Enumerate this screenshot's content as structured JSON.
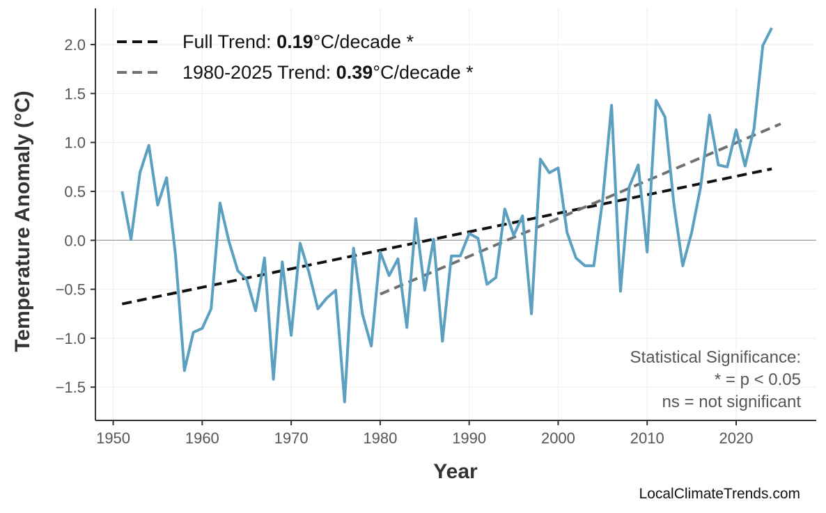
{
  "chart_data": {
    "type": "line",
    "title": "",
    "xlabel": "Year",
    "ylabel": "Temperature Anomaly (°C)",
    "xlim": [
      1948,
      2029
    ],
    "ylim": [
      -1.84,
      2.37
    ],
    "grid": true,
    "legend_position": "top-left",
    "x_ticks": [
      "1950",
      "1960",
      "1970",
      "1980",
      "1990",
      "2000",
      "2010",
      "2020"
    ],
    "y_ticks": [
      "−1.5",
      "−1.0",
      "−0.5",
      "0.0",
      "0.5",
      "1.0",
      "1.5",
      "2.0"
    ],
    "y_tick_values": [
      -1.5,
      -1.0,
      -0.5,
      0.0,
      0.5,
      1.0,
      1.5,
      2.0
    ],
    "series": [
      {
        "color": "#5ba0c0",
        "x": [
          1951,
          1952,
          1953,
          1954,
          1955,
          1956,
          1957,
          1958,
          1959,
          1960,
          1961,
          1962,
          1963,
          1964,
          1965,
          1966,
          1967,
          1968,
          1969,
          1970,
          1971,
          1972,
          1973,
          1974,
          1975,
          1976,
          1977,
          1978,
          1979,
          1980,
          1981,
          1982,
          1983,
          1984,
          1985,
          1986,
          1987,
          1988,
          1989,
          1990,
          1991,
          1992,
          1993,
          1994,
          1995,
          1996,
          1997,
          1998,
          1999,
          2000,
          2001,
          2002,
          2003,
          2004,
          2005,
          2006,
          2007,
          2008,
          2009,
          2010,
          2011,
          2012,
          2013,
          2014,
          2015,
          2016,
          2017,
          2018,
          2019,
          2020,
          2021,
          2022,
          2023,
          2024
        ],
        "y": [
          0.5,
          0.01,
          0.69,
          0.97,
          0.36,
          0.64,
          -0.15,
          -1.33,
          -0.94,
          -0.9,
          -0.7,
          0.38,
          -0.01,
          -0.31,
          -0.4,
          -0.72,
          -0.18,
          -1.42,
          -0.22,
          -0.97,
          -0.03,
          -0.33,
          -0.7,
          -0.59,
          -0.51,
          -1.65,
          -0.08,
          -0.75,
          -1.08,
          -0.12,
          -0.36,
          -0.19,
          -0.89,
          0.22,
          -0.51,
          0.01,
          -1.03,
          -0.16,
          -0.16,
          0.07,
          0.02,
          -0.45,
          -0.38,
          0.32,
          0.05,
          0.25,
          -0.75,
          0.83,
          0.69,
          0.74,
          0.08,
          -0.18,
          -0.26,
          -0.26,
          0.41,
          1.38,
          -0.52,
          0.55,
          0.77,
          -0.12,
          1.43,
          1.26,
          0.37,
          -0.26,
          0.08,
          0.54,
          1.28,
          0.77,
          0.75,
          1.13,
          0.76,
          1.14,
          1.99,
          2.17
        ]
      }
    ],
    "trends": [
      {
        "label_prefix": "Full Trend: ",
        "value": "0.19",
        "label_suffix": "°C/decade *",
        "color": "#111111",
        "x": [
          1951,
          2024
        ],
        "y": [
          -0.65,
          0.73
        ]
      },
      {
        "label_prefix": "1980-2025 Trend: ",
        "value": "0.39",
        "label_suffix": "°C/decade *",
        "color": "#707070",
        "x": [
          1980,
          2025
        ],
        "y": [
          -0.55,
          1.19
        ]
      }
    ],
    "annotations": {
      "significance_title": "Statistical Significance:",
      "significance_line1": "* = p < 0.05",
      "significance_line2": "ns = not significant"
    },
    "source": "LocalClimateTrends.com"
  }
}
